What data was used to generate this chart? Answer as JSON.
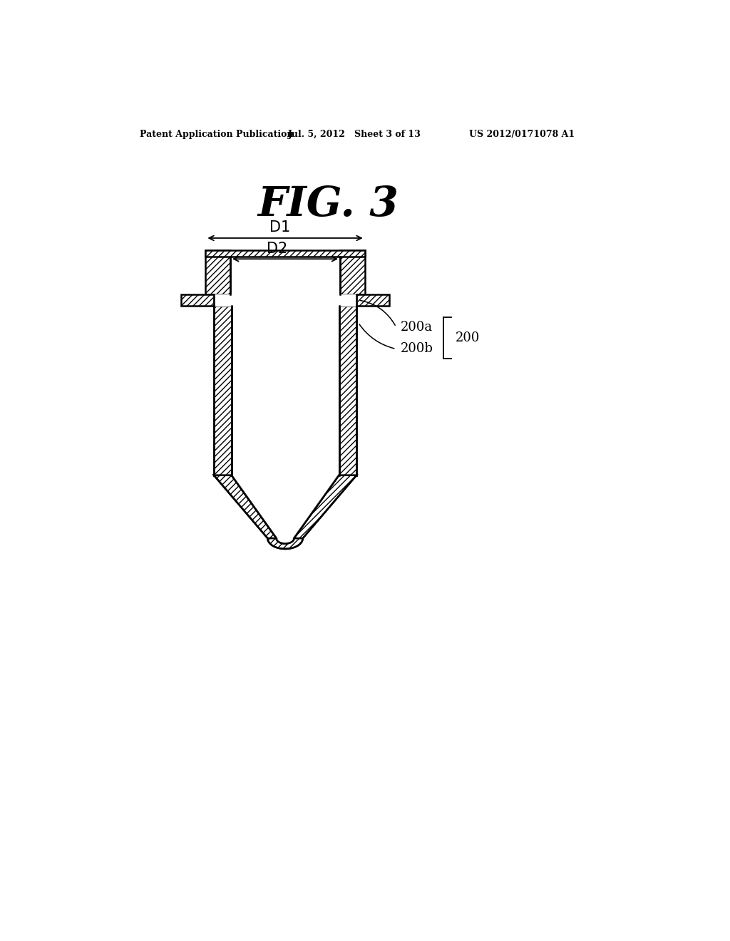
{
  "bg_color": "#ffffff",
  "title": "FIG. 3",
  "header_left": "Patent Application Publication",
  "header_mid": "Jul. 5, 2012   Sheet 3 of 13",
  "header_right": "US 2012/0171078 A1",
  "label_200a": "200a",
  "label_200b": "200b",
  "label_200": "200",
  "label_D1": "D1",
  "label_D2": "D2",
  "line_color": "#000000"
}
